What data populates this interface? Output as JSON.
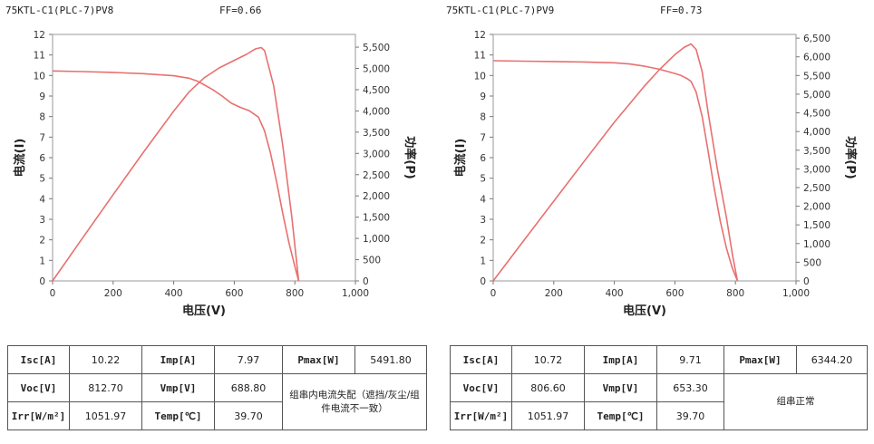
{
  "panels": [
    {
      "name": "75KTL-C1(PLC-7)PV8",
      "ff": "FF=0.66",
      "table": {
        "isc_label": "Isc[A]",
        "isc": "10.22",
        "imp_label": "Imp[A]",
        "imp": "7.97",
        "pmax_label": "Pmax[W]",
        "pmax": "5491.80",
        "voc_label": "Voc[V]",
        "voc": "812.70",
        "vmp_label": "Vmp[V]",
        "vmp": "688.80",
        "irr_label": "Irr[W/m²]",
        "irr": "1051.97",
        "temp_label": "Temp[℃]",
        "temp": "39.70",
        "status": "组串内电流失配（遮挡/灰尘/组件电流不一致）"
      }
    },
    {
      "name": "75KTL-C1(PLC-7)PV9",
      "ff": "FF=0.73",
      "table": {
        "isc_label": "Isc[A]",
        "isc": "10.72",
        "imp_label": "Imp[A]",
        "imp": "9.71",
        "pmax_label": "Pmax[W]",
        "pmax": "6344.20",
        "voc_label": "Voc[V]",
        "voc": "806.60",
        "vmp_label": "Vmp[V]",
        "vmp": "653.30",
        "irr_label": "Irr[W/m²]",
        "irr": "1051.97",
        "temp_label": "Temp[℃]",
        "temp": "39.70",
        "status": "组串正常"
      }
    }
  ],
  "chart_data": [
    {
      "type": "line",
      "xlabel": "电压(V)",
      "ylabel": "电流(I)",
      "y2label": "功率(P)",
      "xlim": [
        0,
        1000
      ],
      "ylim": [
        0,
        12
      ],
      "y2lim": [
        0,
        5800
      ],
      "xticks": [
        "0",
        "200",
        "400",
        "600",
        "800",
        "1,000"
      ],
      "yticks": [
        "0",
        "1",
        "2",
        "3",
        "4",
        "5",
        "6",
        "7",
        "8",
        "9",
        "10",
        "11",
        "12"
      ],
      "y2ticks": [
        "0",
        "500",
        "1,000",
        "1,500",
        "2,000",
        "2,500",
        "3,000",
        "3,500",
        "4,000",
        "4,500",
        "5,000",
        "5,500"
      ],
      "line_color": "#e8706f",
      "grid": false,
      "series": [
        {
          "axis": "left",
          "x": [
            0,
            100,
            200,
            300,
            400,
            450,
            480,
            500,
            530,
            560,
            590,
            620,
            650,
            680,
            700,
            720,
            740,
            760,
            780,
            800,
            812.7
          ],
          "y": [
            10.22,
            10.19,
            10.15,
            10.09,
            9.99,
            9.87,
            9.72,
            9.55,
            9.3,
            9.0,
            8.65,
            8.45,
            8.28,
            7.97,
            7.3,
            6.2,
            4.8,
            3.3,
            1.9,
            0.7,
            0
          ]
        },
        {
          "axis": "right",
          "x": [
            0,
            100,
            200,
            300,
            400,
            450,
            500,
            550,
            600,
            640,
            670,
            688.8,
            700,
            730,
            760,
            790,
            812.7
          ],
          "y": [
            0,
            1019,
            2030,
            3027,
            3996,
            4442,
            4775,
            5010,
            5190,
            5330,
            5460,
            5491.8,
            5420,
            4600,
            3200,
            1500,
            0
          ]
        }
      ]
    },
    {
      "type": "line",
      "xlabel": "电压(V)",
      "ylabel": "电流(I)",
      "y2label": "功率(P)",
      "xlim": [
        0,
        1000
      ],
      "ylim": [
        0,
        12
      ],
      "y2lim": [
        0,
        6600
      ],
      "xticks": [
        "0",
        "200",
        "400",
        "600",
        "800",
        "1,000"
      ],
      "yticks": [
        "0",
        "1",
        "2",
        "3",
        "4",
        "5",
        "6",
        "7",
        "8",
        "9",
        "10",
        "11",
        "12"
      ],
      "y2ticks": [
        "0",
        "500",
        "1,000",
        "1,500",
        "2,000",
        "2,500",
        "3,000",
        "3,500",
        "4,000",
        "4,500",
        "5,000",
        "5,500",
        "6,000",
        "6,500"
      ],
      "line_color": "#e8706f",
      "grid": false,
      "series": [
        {
          "axis": "left",
          "x": [
            0,
            100,
            200,
            300,
            400,
            450,
            500,
            550,
            600,
            620,
            640,
            653.3,
            670,
            690,
            710,
            730,
            750,
            770,
            790,
            806.6
          ],
          "y": [
            10.72,
            10.7,
            10.68,
            10.66,
            10.62,
            10.56,
            10.45,
            10.3,
            10.1,
            10.0,
            9.85,
            9.71,
            9.2,
            8.0,
            6.3,
            4.5,
            2.9,
            1.6,
            0.6,
            0
          ]
        },
        {
          "axis": "right",
          "x": [
            0,
            100,
            200,
            300,
            400,
            500,
            550,
            600,
            630,
            653.3,
            670,
            690,
            710,
            740,
            770,
            790,
            806.6
          ],
          "y": [
            0,
            1070,
            2136,
            3198,
            4248,
            5225,
            5665,
            6060,
            6250,
            6344.2,
            6200,
            5600,
            4500,
            3000,
            1700,
            700,
            0
          ]
        }
      ]
    }
  ]
}
